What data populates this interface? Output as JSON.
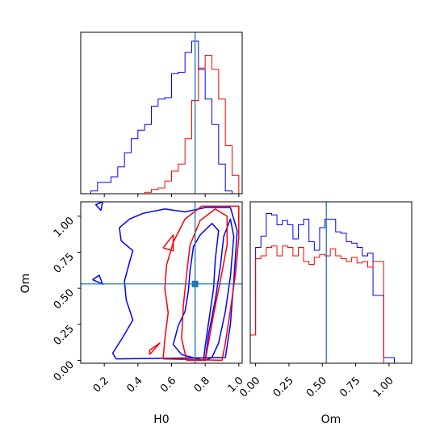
{
  "chart_data": {
    "type": "corner",
    "parameters": [
      "H0",
      "Om"
    ],
    "truths": {
      "H0": 0.74,
      "Om": 0.53
    },
    "colors": {
      "blue": "#0000ff",
      "red": "#ff0000",
      "truth": "#1f77b4"
    },
    "panels": [
      {
        "id": "h0_marginal",
        "type": "histogram",
        "xlim": [
          0.06,
          1.02
        ],
        "bin_edges": [
          0.12,
          0.16,
          0.2,
          0.24,
          0.28,
          0.32,
          0.36,
          0.4,
          0.44,
          0.48,
          0.52,
          0.56,
          0.6,
          0.64,
          0.68,
          0.72,
          0.76,
          0.8,
          0.84,
          0.88,
          0.92,
          0.96,
          1.0
        ],
        "series": [
          {
            "color": "blue",
            "counts": [
              0.02,
              0.08,
              0.08,
              0.12,
              0.19,
              0.29,
              0.39,
              0.45,
              0.49,
              0.62,
              0.67,
              0.68,
              0.85,
              0.86,
              1.0,
              1.08,
              0.88,
              0.67,
              0.49,
              0.21,
              0.02,
              0
            ]
          },
          {
            "color": "red",
            "counts": [
              0,
              0,
              0,
              0,
              0,
              0,
              0,
              0,
              0.01,
              0.03,
              0.04,
              0.09,
              0.16,
              0.21,
              0.39,
              0.66,
              0.89,
              0.98,
              0.88,
              0.67,
              0.34,
              0.13
            ]
          }
        ]
      },
      {
        "id": "joint",
        "type": "contour",
        "xlabel": "H0",
        "ylabel": "Om",
        "xlim": [
          0.06,
          1.02
        ],
        "ylim": [
          -0.02,
          1.1
        ],
        "xticks": [
          "0.2",
          "0.4",
          "0.6",
          "0.8",
          "1.0"
        ],
        "yticks": [
          "0.00",
          "0.25",
          "0.50",
          "0.75",
          "1.00"
        ],
        "contours": [
          {
            "color": "blue",
            "points": [
              [
                0.27,
                0.01
              ],
              [
                0.25,
                0.05
              ],
              [
                0.31,
                0.16
              ],
              [
                0.37,
                0.28
              ],
              [
                0.33,
                0.42
              ],
              [
                0.32,
                0.55
              ],
              [
                0.35,
                0.68
              ],
              [
                0.37,
                0.76
              ],
              [
                0.3,
                0.83
              ],
              [
                0.29,
                0.92
              ],
              [
                0.35,
                0.98
              ],
              [
                0.43,
                1.02
              ],
              [
                0.56,
                1.05
              ],
              [
                0.68,
                1.03
              ],
              [
                0.8,
                1.06
              ],
              [
                0.95,
                1.06
              ],
              [
                0.99,
                0.9
              ],
              [
                0.97,
                0.55
              ],
              [
                0.95,
                0.25
              ],
              [
                0.92,
                0.02
              ],
              [
                0.27,
                0.01
              ]
            ]
          },
          {
            "color": "blue",
            "points": [
              [
                0.66,
                0.04
              ],
              [
                0.61,
                0.11
              ],
              [
                0.64,
                0.24
              ],
              [
                0.68,
                0.34
              ],
              [
                0.7,
                0.48
              ],
              [
                0.71,
                0.62
              ],
              [
                0.73,
                0.79
              ],
              [
                0.77,
                0.87
              ],
              [
                0.84,
                0.95
              ],
              [
                0.88,
                0.9
              ],
              [
                0.86,
                0.7
              ],
              [
                0.85,
                0.5
              ],
              [
                0.82,
                0.26
              ],
              [
                0.8,
                0.1
              ],
              [
                0.79,
                0.0
              ],
              [
                0.66,
                0.04
              ]
            ]
          },
          {
            "color": "blue",
            "points": [
              [
                0.8,
                0.0
              ],
              [
                0.82,
                0.18
              ],
              [
                0.86,
                0.42
              ],
              [
                0.89,
                0.65
              ],
              [
                0.91,
                0.86
              ],
              [
                0.95,
                0.98
              ],
              [
                0.97,
                0.86
              ],
              [
                0.95,
                0.58
              ],
              [
                0.92,
                0.34
              ],
              [
                0.88,
                0.12
              ],
              [
                0.84,
                0.02
              ],
              [
                0.8,
                0.0
              ]
            ]
          },
          {
            "color": "red",
            "points": [
              [
                0.55,
                0.01
              ],
              [
                0.56,
                0.15
              ],
              [
                0.58,
                0.33
              ],
              [
                0.56,
                0.5
              ],
              [
                0.57,
                0.66
              ],
              [
                0.61,
                0.82
              ],
              [
                0.68,
                0.98
              ],
              [
                0.78,
                1.07
              ],
              [
                0.91,
                1.07
              ],
              [
                1.0,
                1.07
              ],
              [
                1.0,
                0.85
              ],
              [
                0.98,
                0.6
              ],
              [
                0.95,
                0.35
              ],
              [
                0.92,
                0.12
              ],
              [
                0.9,
                0.0
              ],
              [
                0.55,
                0.01
              ]
            ]
          },
          {
            "color": "red",
            "points": [
              [
                0.69,
                0.0
              ],
              [
                0.66,
                0.15
              ],
              [
                0.67,
                0.38
              ],
              [
                0.69,
                0.6
              ],
              [
                0.71,
                0.8
              ],
              [
                0.77,
                0.97
              ],
              [
                0.86,
                1.05
              ],
              [
                0.93,
                1.0
              ],
              [
                0.93,
                0.8
              ],
              [
                0.89,
                0.55
              ],
              [
                0.85,
                0.32
              ],
              [
                0.82,
                0.12
              ],
              [
                0.8,
                0.0
              ],
              [
                0.69,
                0.0
              ]
            ]
          },
          {
            "color": "red",
            "points": [
              [
                0.47,
                0.04
              ],
              [
                0.53,
                0.12
              ],
              [
                0.47,
                0.07
              ],
              [
                0.47,
                0.04
              ]
            ]
          },
          {
            "color": "red",
            "points": [
              [
                0.55,
                0.78
              ],
              [
                0.61,
                0.87
              ],
              [
                0.61,
                0.76
              ],
              [
                0.55,
                0.78
              ]
            ]
          }
        ]
      },
      {
        "id": "om_marginal",
        "type": "histogram",
        "xlim": [
          -0.04,
          1.17
        ],
        "xlabel": "Om",
        "xticks": [
          "0.00",
          "0.25",
          "0.50",
          "0.75",
          "1.00"
        ],
        "bin_edges": [
          -0.04,
          0.0,
          0.04,
          0.08,
          0.12,
          0.16,
          0.2,
          0.24,
          0.28,
          0.32,
          0.36,
          0.4,
          0.44,
          0.48,
          0.52,
          0.56,
          0.6,
          0.64,
          0.68,
          0.72,
          0.76,
          0.8,
          0.84,
          0.88,
          0.92,
          0.96,
          1.0,
          1.04,
          1.08
        ],
        "series": [
          {
            "color": "blue",
            "counts": [
              0.2,
              0.82,
              0.9,
              1.06,
              1.05,
              0.98,
              1.01,
              0.98,
              0.88,
              0.98,
              1.02,
              0.86,
              0.8,
              0.96,
              1.02,
              1.02,
              0.93,
              0.92,
              0.86,
              0.85,
              0.82,
              0.76,
              0.78,
              0.48,
              0.48,
              0.04,
              0.04,
              0.0
            ]
          },
          {
            "color": "red",
            "counts": [
              0.2,
              0.74,
              0.76,
              0.82,
              0.83,
              0.76,
              0.83,
              0.82,
              0.76,
              0.82,
              0.72,
              0.7,
              0.75,
              0.77,
              0.76,
              0.81,
              0.76,
              0.74,
              0.72,
              0.75,
              0.71,
              0.72,
              0.68,
              0.72,
              0.72,
              0.0,
              0.0,
              0.0
            ]
          }
        ]
      }
    ]
  }
}
